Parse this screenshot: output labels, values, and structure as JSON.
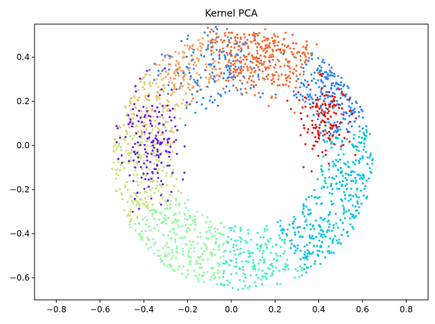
{
  "chart_data": {
    "type": "scatter",
    "title": "Kernel PCA",
    "xlabel": "",
    "ylabel": "",
    "xlim": [
      -0.9,
      0.9
    ],
    "ylim": [
      -0.7,
      0.55
    ],
    "xticks": [
      -0.8,
      -0.6,
      -0.4,
      -0.2,
      0.0,
      0.2,
      0.4,
      0.6,
      0.8
    ],
    "yticks": [
      -0.6,
      -0.4,
      -0.2,
      0.0,
      0.2,
      0.4
    ],
    "xtick_labels": [
      "−0.8",
      "−0.6",
      "−0.4",
      "−0.2",
      "0.0",
      "0.2",
      "0.4",
      "0.6",
      "0.8"
    ],
    "ytick_labels": [
      "−0.6",
      "−0.4",
      "−0.2",
      "0.0",
      "0.2",
      "0.4"
    ],
    "grid": false,
    "legend": "none",
    "colormap": "rainbow",
    "ring": {
      "center": [
        0.05,
        -0.07
      ],
      "outer_radius": 0.61,
      "inner_radius_min": 0.3,
      "inner_radius_max": 0.38,
      "point_count": 1800
    },
    "clusters": [
      {
        "color": "#6a1cf5",
        "center": [
          -0.37,
          0.02
        ],
        "spread": [
          0.07,
          0.13
        ],
        "count": 170
      },
      {
        "color": "#e8120b",
        "center": [
          0.43,
          0.12
        ],
        "spread": [
          0.06,
          0.09
        ],
        "count": 140
      },
      {
        "color": "#2f86f6",
        "center": [
          -0.08,
          0.33
        ],
        "spread": [
          0.12,
          0.11
        ],
        "count": 160
      },
      {
        "color": "#fb6b35",
        "center": [
          0.13,
          0.38
        ],
        "spread": [
          0.12,
          0.1
        ],
        "count": 150
      }
    ],
    "palette": [
      "#6a1cf5",
      "#2f86f6",
      "#08c7e3",
      "#3df4c0",
      "#8bfc9b",
      "#c8e47a",
      "#e7c66a",
      "#f9a15b",
      "#fb6b35",
      "#e8120b"
    ]
  }
}
